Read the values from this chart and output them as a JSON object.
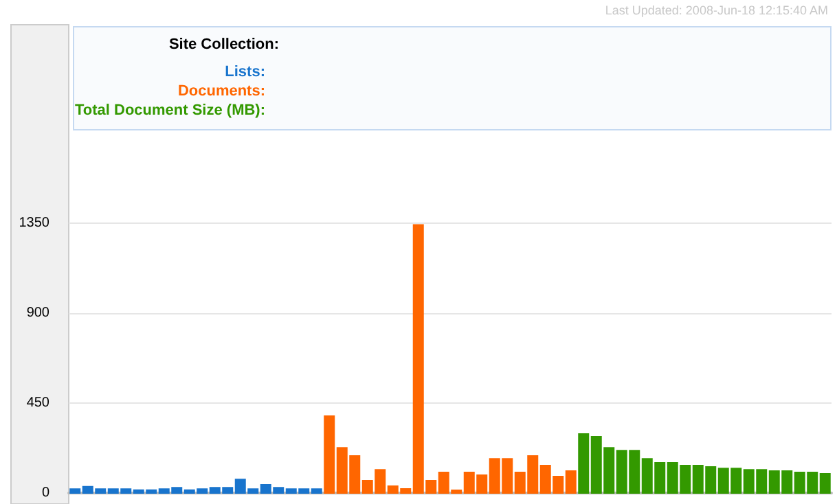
{
  "chart_data": {
    "type": "bar",
    "legend_title": "Site Collection:",
    "annotations": [
      "Last Updated: 2008-Jun-18 12:15:40 AM"
    ],
    "categories": [
      null,
      null,
      null,
      null,
      null,
      null,
      null,
      null,
      null,
      null,
      null,
      null,
      null,
      null,
      null,
      null,
      null,
      null,
      null,
      null,
      null,
      null,
      null,
      null,
      null,
      null,
      null,
      null,
      null,
      null,
      null,
      null,
      null,
      null,
      null,
      null,
      null,
      null,
      null,
      null,
      null,
      null,
      null,
      null,
      null,
      null,
      null,
      null,
      null,
      null,
      null,
      null,
      null,
      null,
      null,
      null,
      null,
      null,
      null,
      null
    ],
    "series": [
      {
        "name": "Lists:",
        "color": "#1874cd",
        "values": [
          20,
          32,
          20,
          20,
          20,
          15,
          15,
          20,
          27,
          15,
          20,
          27,
          27,
          68,
          20,
          41,
          27,
          20,
          20,
          20,
          null,
          null,
          null,
          null,
          null,
          null,
          null,
          null,
          null,
          null,
          null,
          null,
          null,
          null,
          null,
          null,
          null,
          null,
          null,
          null,
          null,
          null,
          null,
          null,
          null,
          null,
          null,
          null,
          null,
          null,
          null,
          null,
          null,
          null,
          null,
          null,
          null,
          null,
          null,
          null
        ]
      },
      {
        "name": "Documents:",
        "color": "#ff6600",
        "values": [
          null,
          null,
          null,
          null,
          null,
          null,
          null,
          null,
          null,
          null,
          null,
          null,
          null,
          null,
          null,
          null,
          null,
          null,
          null,
          null,
          384,
          226,
          185,
          62,
          116,
          34,
          21,
          1340,
          62,
          103,
          14,
          103,
          89,
          171,
          171,
          103,
          185,
          137,
          82,
          110,
          null,
          null,
          null,
          null,
          null,
          null,
          null,
          null,
          null,
          null,
          null,
          null,
          null,
          null,
          null,
          null,
          null,
          null,
          null,
          null
        ]
      },
      {
        "name": "Total Document Size (MB):",
        "color": "#339900",
        "values": [
          null,
          null,
          null,
          null,
          null,
          null,
          null,
          null,
          null,
          null,
          null,
          null,
          null,
          null,
          null,
          null,
          null,
          null,
          null,
          null,
          null,
          null,
          null,
          null,
          null,
          null,
          null,
          null,
          null,
          null,
          null,
          null,
          null,
          null,
          null,
          null,
          null,
          null,
          null,
          null,
          295,
          281,
          226,
          212,
          212,
          171,
          151,
          151,
          137,
          137,
          130,
          123,
          123,
          116,
          116,
          110,
          110,
          103,
          103,
          96
        ]
      }
    ],
    "ylim": [
      0,
      2340
    ],
    "yticks": [
      0,
      450,
      900,
      1350
    ],
    "grid": "y",
    "legend": "top"
  }
}
